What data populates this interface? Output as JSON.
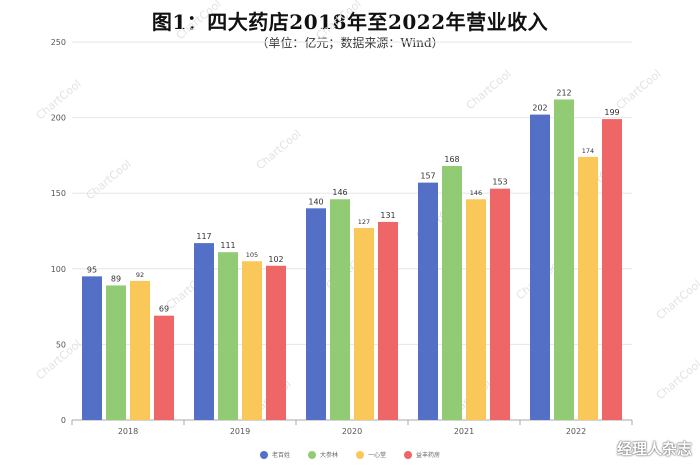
{
  "chart_data": {
    "type": "bar",
    "title": "图1：四大药店2018年至2022年营业收入",
    "subtitle": "（单位：亿元；数据来源：Wind）",
    "categories": [
      "2018",
      "2019",
      "2020",
      "2021",
      "2022"
    ],
    "ylim": [
      0,
      250
    ],
    "yticks": [
      0,
      50,
      100,
      150,
      200,
      250
    ],
    "grid": true,
    "legend_position": "bottom",
    "series": [
      {
        "name": "老百姓",
        "color": "#5470c6",
        "values": [
          95,
          117,
          140,
          157,
          202
        ]
      },
      {
        "name": "大参林",
        "color": "#91cc75",
        "values": [
          89,
          111,
          146,
          168,
          212
        ]
      },
      {
        "name": "一心堂",
        "color": "#fac858",
        "values": [
          92,
          105,
          127,
          146,
          174
        ]
      },
      {
        "name": "益丰药房",
        "color": "#ee6666",
        "values": [
          69,
          102,
          131,
          153,
          199
        ]
      }
    ]
  },
  "watermark_text": "ChartCool",
  "signature_text": "经理人杂志"
}
